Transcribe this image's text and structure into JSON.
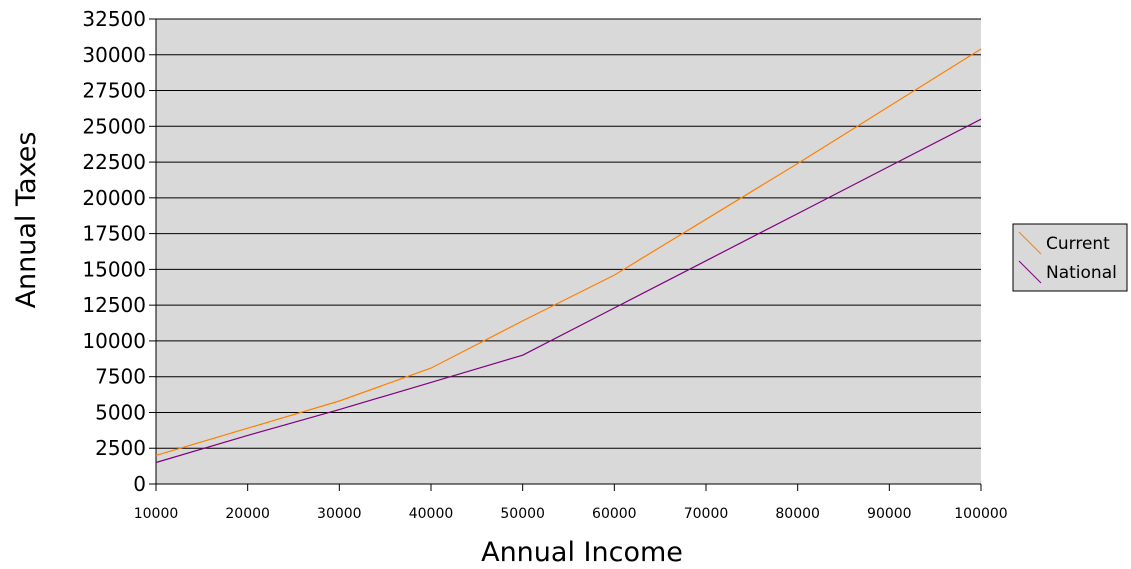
{
  "chart_data": {
    "type": "line",
    "title": "",
    "xlabel": "Annual Income",
    "ylabel": "Annual Taxes",
    "xlim": [
      10000,
      100000
    ],
    "ylim": [
      0,
      32500
    ],
    "xticks": [
      10000,
      20000,
      30000,
      40000,
      50000,
      60000,
      70000,
      80000,
      90000,
      100000
    ],
    "yticks": [
      0,
      2500,
      5000,
      7500,
      10000,
      12500,
      15000,
      17500,
      20000,
      22500,
      25000,
      27500,
      30000,
      32500
    ],
    "grid": true,
    "legend_position": "right",
    "background": "#d9d9d9",
    "series": [
      {
        "name": "Current",
        "color": "#ff8000",
        "x": [
          10000,
          20000,
          30000,
          40000,
          50000,
          60000,
          70000,
          80000,
          90000,
          100000
        ],
        "y": [
          2000,
          3900,
          5800,
          8100,
          11400,
          14600,
          18500,
          22400,
          26400,
          30400
        ]
      },
      {
        "name": "National",
        "color": "#800080",
        "x": [
          10000,
          20000,
          30000,
          40000,
          50000,
          60000,
          70000,
          80000,
          90000,
          100000
        ],
        "y": [
          1500,
          3400,
          5200,
          7100,
          9000,
          12300,
          15600,
          18900,
          22200,
          25500
        ]
      }
    ]
  }
}
